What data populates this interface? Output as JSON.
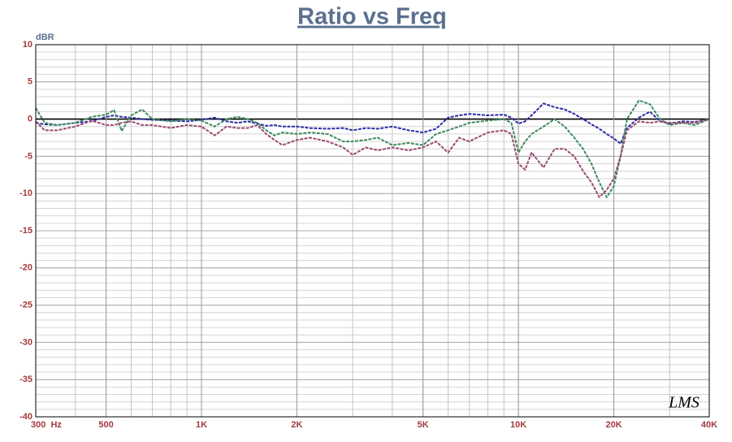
{
  "chart_data": {
    "type": "line",
    "title": "Ratio vs Freq",
    "y_unit_label": "dBR",
    "logo": "LMS",
    "log_x": true,
    "grid": true,
    "xlim": [
      300,
      40000
    ],
    "ylim": [
      -40,
      10
    ],
    "xticks": [
      {
        "value": 300,
        "label": "300  Hz"
      },
      500,
      {
        "value": 1000,
        "label": "1K"
      },
      {
        "value": 2000,
        "label": "2K"
      },
      {
        "value": 5000,
        "label": "5K"
      },
      {
        "value": 10000,
        "label": "10K"
      },
      {
        "value": 20000,
        "label": "20K"
      },
      {
        "value": 40000,
        "label": "40K"
      }
    ],
    "yticks": [
      -40,
      -35,
      -30,
      -25,
      -20,
      -15,
      -10,
      -5,
      0,
      5,
      10
    ],
    "x_minor_grid": [
      300,
      400,
      500,
      600,
      700,
      800,
      900,
      1000,
      2000,
      3000,
      4000,
      5000,
      6000,
      7000,
      8000,
      9000,
      10000,
      20000,
      30000,
      40000
    ],
    "y_minor_grid": [
      -40,
      -39,
      -38,
      -37,
      -36,
      -35,
      -34,
      -33,
      -32,
      -31,
      -30,
      -29,
      -28,
      -27,
      -26,
      -25,
      -24,
      -23,
      -22,
      -21,
      -20,
      -19,
      -18,
      -17,
      -16,
      -15,
      -14,
      -13,
      -12,
      -11,
      -10,
      -9,
      -8,
      -7,
      -6,
      -5,
      -4,
      -3,
      -2,
      -1,
      0,
      1,
      2,
      3,
      4,
      5,
      6,
      7,
      8,
      9,
      10
    ],
    "x": [
      300,
      320,
      350,
      400,
      450,
      500,
      530,
      560,
      600,
      650,
      700,
      800,
      900,
      1000,
      1100,
      1200,
      1300,
      1400,
      1500,
      1600,
      1700,
      1800,
      2000,
      2200,
      2500,
      2800,
      3000,
      3300,
      3600,
      4000,
      4500,
      5000,
      5500,
      6000,
      6500,
      7000,
      8000,
      9000,
      9500,
      10000,
      10500,
      11000,
      12000,
      13000,
      14000,
      15000,
      16000,
      17000,
      18000,
      19000,
      20000,
      21000,
      22000,
      24000,
      26000,
      28000,
      30000,
      33000,
      36000,
      40000
    ],
    "series": [
      {
        "color": "#2b2ba6",
        "values": [
          -0.5,
          -0.7,
          -0.8,
          -0.5,
          -0.3,
          0.3,
          0.5,
          0.3,
          0.2,
          0,
          -0.1,
          -0.2,
          -0.3,
          -0.1,
          0.2,
          -0.3,
          -0.5,
          -0.3,
          -0.6,
          -0.9,
          -0.8,
          -1,
          -1,
          -1.2,
          -1.3,
          -1.2,
          -1.5,
          -1.2,
          -1.3,
          -1,
          -1.5,
          -1.8,
          -1.3,
          0.2,
          0.5,
          0.7,
          0.5,
          0.6,
          0.2,
          -0.6,
          -0.3,
          0.5,
          2.1,
          1.6,
          1.3,
          0.7,
          0,
          -0.7,
          -1.3,
          -2,
          -2.6,
          -3.3,
          -1.2,
          0.2,
          1,
          -0.3,
          -0.6,
          -0.3,
          -0.4,
          0
        ]
      },
      {
        "color": "#3d8a5c",
        "values": [
          1.5,
          -0.5,
          -0.8,
          -0.5,
          0.3,
          0.6,
          1.2,
          -1.6,
          0.5,
          1.3,
          0,
          -0.3,
          0,
          -0.2,
          -1,
          0,
          0.3,
          0,
          -0.5,
          -1.5,
          -2.2,
          -1.8,
          -2,
          -1.8,
          -2,
          -3,
          -3,
          -2.8,
          -2.5,
          -3.5,
          -3.2,
          -3.5,
          -2,
          -1.5,
          -1,
          -0.5,
          -0.2,
          0,
          -0.5,
          -4.5,
          -3,
          -2,
          -1,
          0,
          -1,
          -2.5,
          -4,
          -6,
          -8.5,
          -10.5,
          -9,
          -5,
          0,
          2.5,
          2,
          0,
          -0.8,
          -0.5,
          -0.8,
          0
        ]
      },
      {
        "color": "#9b4a72",
        "values": [
          -0.3,
          -1.5,
          -1.5,
          -1,
          -0.2,
          -0.8,
          -0.8,
          -0.5,
          -0.3,
          -0.8,
          -0.8,
          -1.2,
          -0.8,
          -1,
          -2.2,
          -1,
          -1.2,
          -1.2,
          -0.8,
          -2,
          -2.8,
          -3.5,
          -2.8,
          -2.5,
          -3,
          -3.8,
          -4.8,
          -3.8,
          -4.2,
          -3.8,
          -4.2,
          -3.8,
          -3,
          -4.5,
          -2.5,
          -3,
          -1.8,
          -1.5,
          -2,
          -6,
          -6.8,
          -4.5,
          -6.5,
          -4,
          -4,
          -5,
          -7,
          -8.5,
          -10.5,
          -9.5,
          -8,
          -5,
          -1.5,
          -0.3,
          -0.5,
          -0.3,
          -0.5,
          -0.5,
          -0.5,
          0
        ]
      }
    ]
  }
}
